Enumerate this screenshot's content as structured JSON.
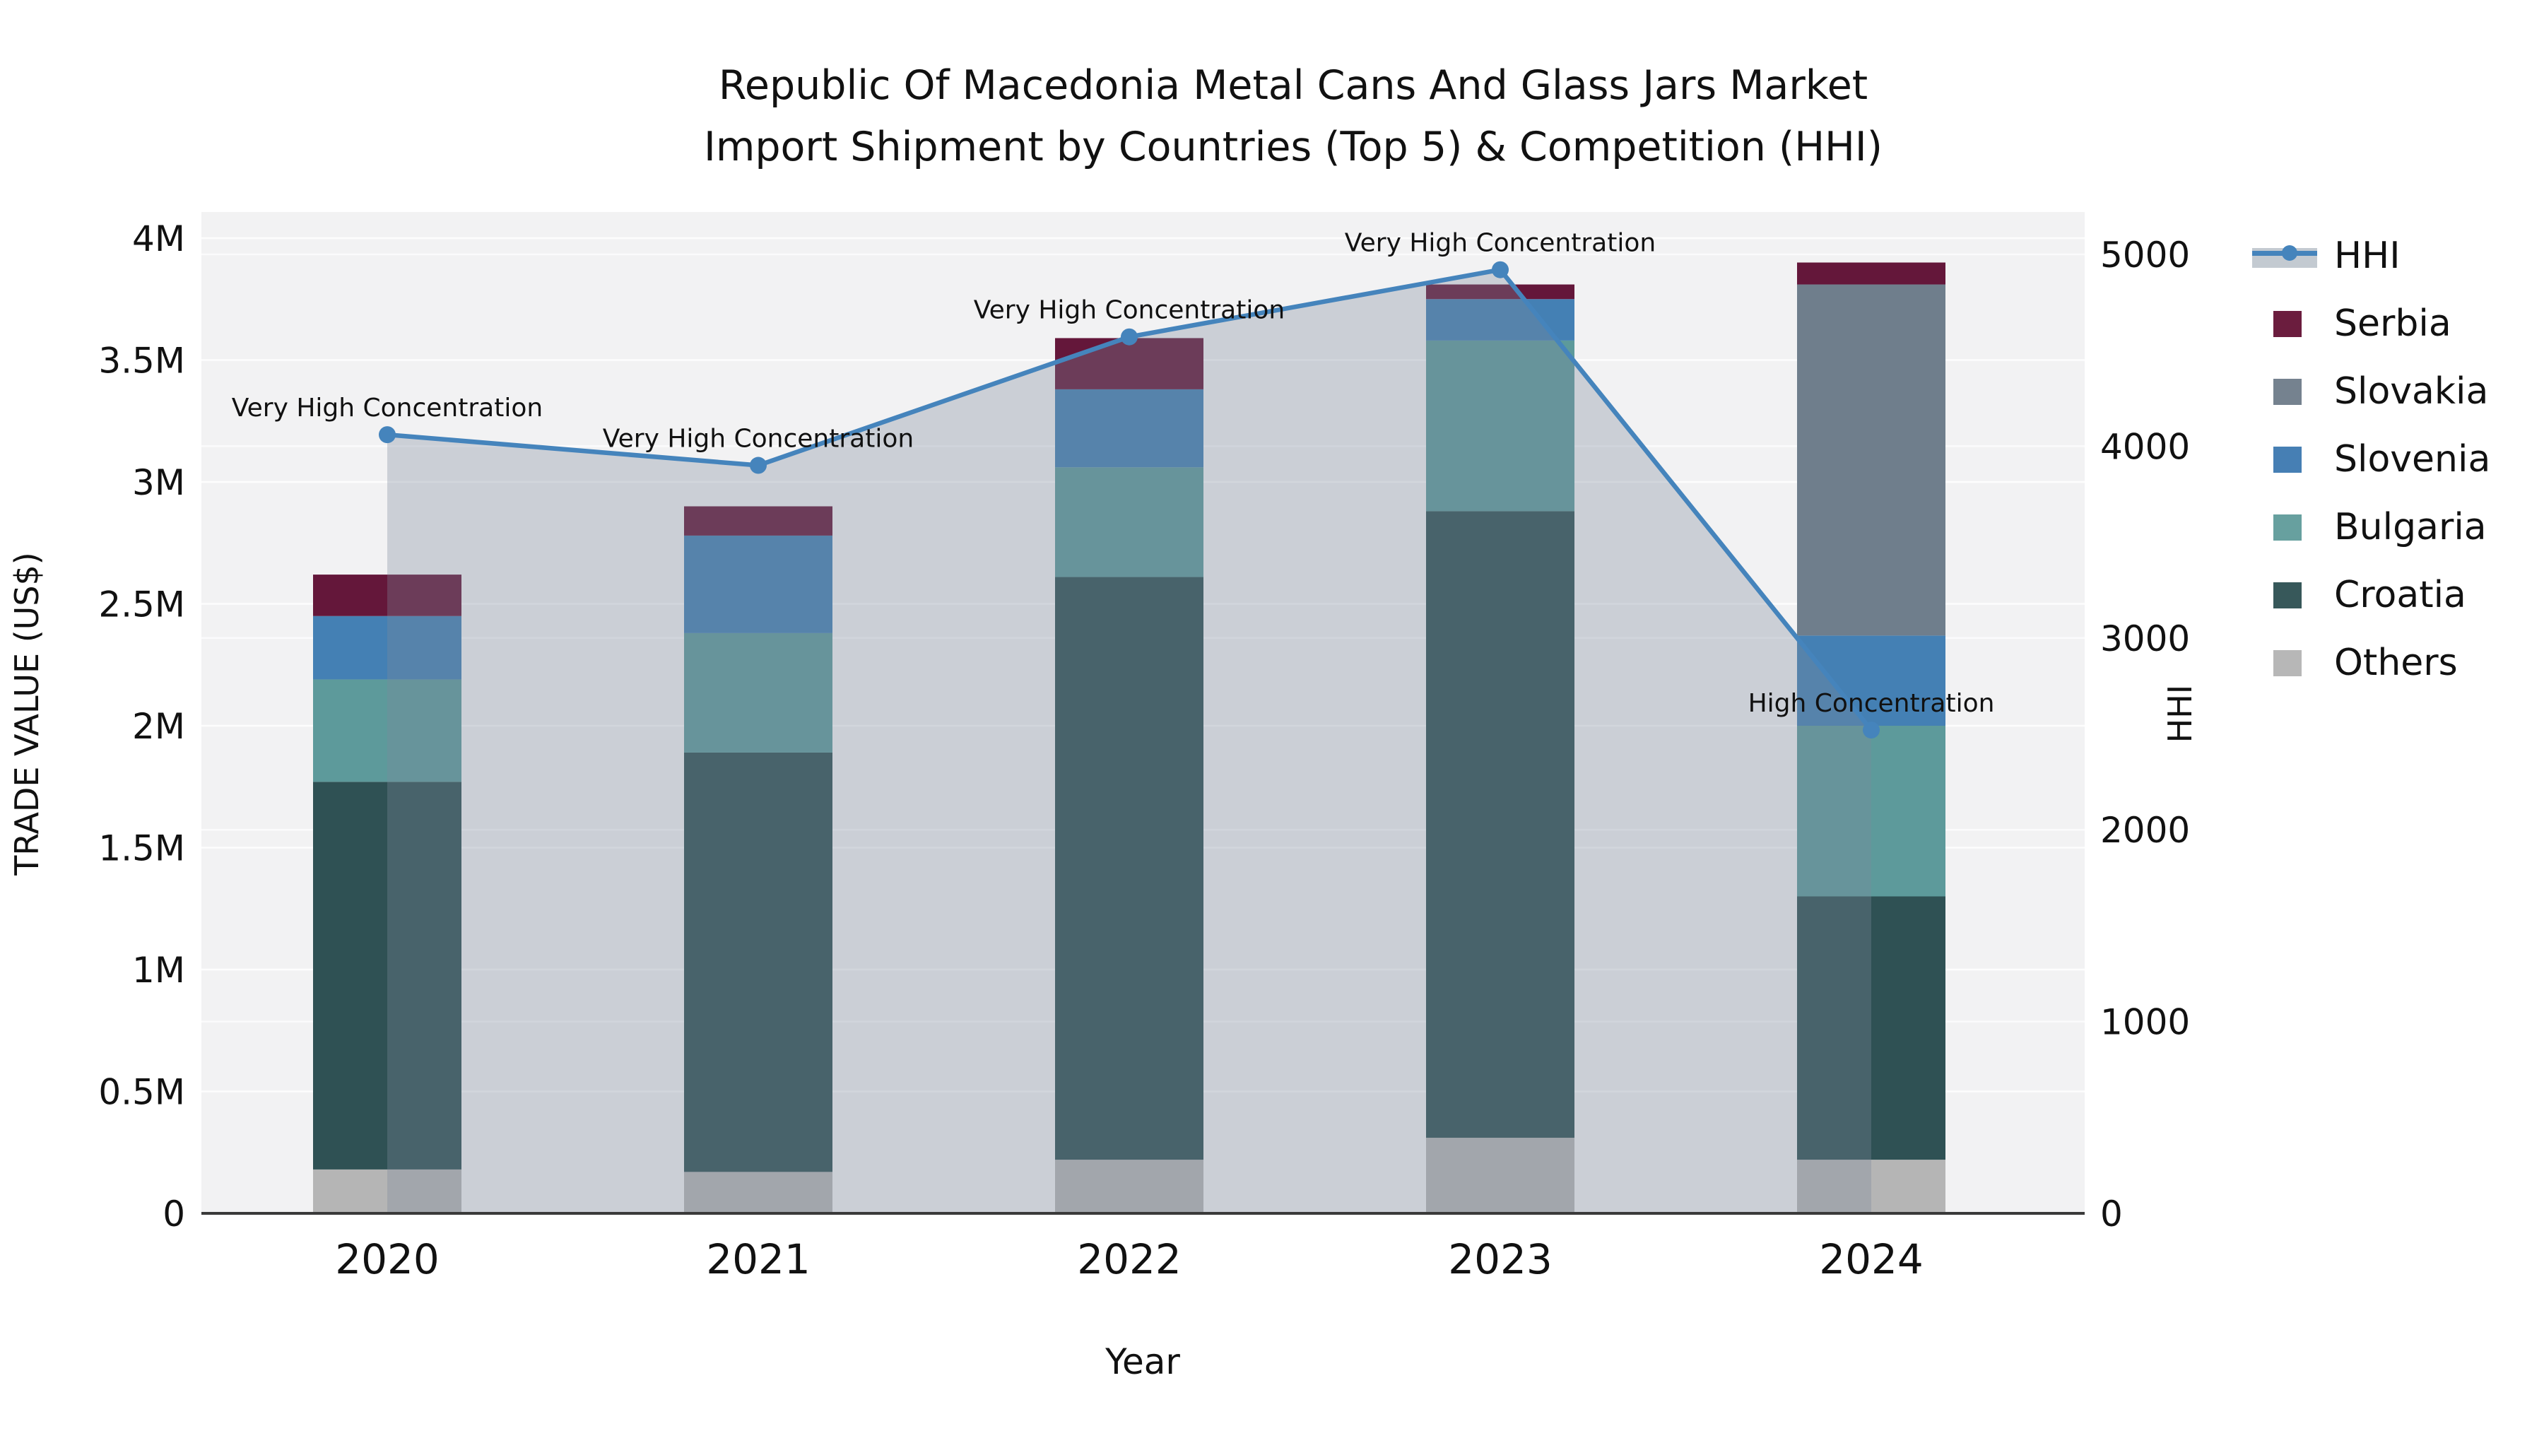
{
  "title": {
    "line1": "Republic Of Macedonia Metal Cans And Glass Jars Market",
    "line2": "Import Shipment by Countries (Top 5) & Competition (HHI)"
  },
  "axes": {
    "x_label": "Year",
    "y_left_label": "TRADE VALUE (US$)",
    "y_right_label": "HHI",
    "y_left_ticks": [
      {
        "value": 0,
        "label": "0"
      },
      {
        "value": 0.5,
        "label": "0.5M"
      },
      {
        "value": 1,
        "label": "1M"
      },
      {
        "value": 1.5,
        "label": "1.5M"
      },
      {
        "value": 2,
        "label": "2M"
      },
      {
        "value": 2.5,
        "label": "2.5M"
      },
      {
        "value": 3,
        "label": "3M"
      },
      {
        "value": 3.5,
        "label": "3.5M"
      },
      {
        "value": 4,
        "label": "4M"
      }
    ],
    "y_right_ticks": [
      {
        "value": 0,
        "label": "0"
      },
      {
        "value": 1000,
        "label": "1000"
      },
      {
        "value": 2000,
        "label": "2000"
      },
      {
        "value": 3000,
        "label": "3000"
      },
      {
        "value": 4000,
        "label": "4000"
      },
      {
        "value": 5000,
        "label": "5000"
      }
    ]
  },
  "legend": {
    "items": [
      {
        "label": "HHI",
        "type": "line",
        "color": "#4584bc"
      },
      {
        "label": "Serbia",
        "type": "swatch",
        "color": "#6b1d3e"
      },
      {
        "label": "Slovakia",
        "type": "swatch",
        "color": "#75828f"
      },
      {
        "label": "Slovenia",
        "type": "swatch",
        "color": "#467fb4"
      },
      {
        "label": "Bulgaria",
        "type": "swatch",
        "color": "#67a09f"
      },
      {
        "label": "Croatia",
        "type": "swatch",
        "color": "#37585a"
      },
      {
        "label": "Others",
        "type": "swatch",
        "color": "#b7b7b7"
      }
    ]
  },
  "chart_data": {
    "type": "bar+line",
    "title": "Republic Of Macedonia Metal Cans And Glass Jars Market Import Shipment by Countries (Top 5) & Competition (HHI)",
    "categories": [
      "2020",
      "2021",
      "2022",
      "2023",
      "2024"
    ],
    "xlabel": "Year",
    "ylabel_left": "TRADE VALUE (US$)",
    "ylabel_right": "HHI",
    "y_left_unit": "million US$",
    "y_left_range_M": [
      0,
      4
    ],
    "y_right_range": [
      0,
      5000
    ],
    "grid": true,
    "legend_position": "right",
    "stack_order_bottom_to_top": [
      "Others",
      "Croatia",
      "Bulgaria",
      "Slovenia",
      "Slovakia",
      "Serbia"
    ],
    "series": [
      {
        "name": "Others",
        "color": "#b5b5b5",
        "values_M": [
          0.18,
          0.17,
          0.22,
          0.31,
          0.22
        ]
      },
      {
        "name": "Croatia",
        "color": "#2f5154",
        "values_M": [
          1.59,
          1.72,
          2.39,
          2.57,
          1.08
        ]
      },
      {
        "name": "Bulgaria",
        "color": "#5d9a9b",
        "values_M": [
          0.42,
          0.49,
          0.45,
          0.7,
          0.7
        ]
      },
      {
        "name": "Slovenia",
        "color": "#4480b4",
        "values_M": [
          0.26,
          0.4,
          0.32,
          0.17,
          0.37
        ]
      },
      {
        "name": "Slovakia",
        "color": "#6f7e8c",
        "values_M": [
          0.0,
          0.0,
          0.0,
          0.0,
          1.44
        ]
      },
      {
        "name": "Serbia",
        "color": "#64173a",
        "values_M": [
          0.17,
          0.12,
          0.21,
          0.06,
          0.09
        ]
      }
    ],
    "bar_totals_M": [
      2.62,
      2.9,
      3.59,
      3.81,
      3.9
    ],
    "line_series": {
      "name": "HHI",
      "color": "#4584bc",
      "area_fill": "rgba(123,138,154,0.33)",
      "values": [
        4060,
        3900,
        4570,
        4920,
        2520
      ]
    },
    "annotations": [
      {
        "category": "2020",
        "text": "Very High Concentration"
      },
      {
        "category": "2021",
        "text": "Very High Concentration"
      },
      {
        "category": "2022",
        "text": "Very High Concentration"
      },
      {
        "category": "2023",
        "text": "Very High Concentration"
      },
      {
        "category": "2024",
        "text": "High Concentration"
      }
    ]
  },
  "colors": {
    "plot_bg": "#f2f2f3",
    "grid": "#ffffff",
    "axis_line": "#3a3a3a",
    "text": "#111111"
  }
}
